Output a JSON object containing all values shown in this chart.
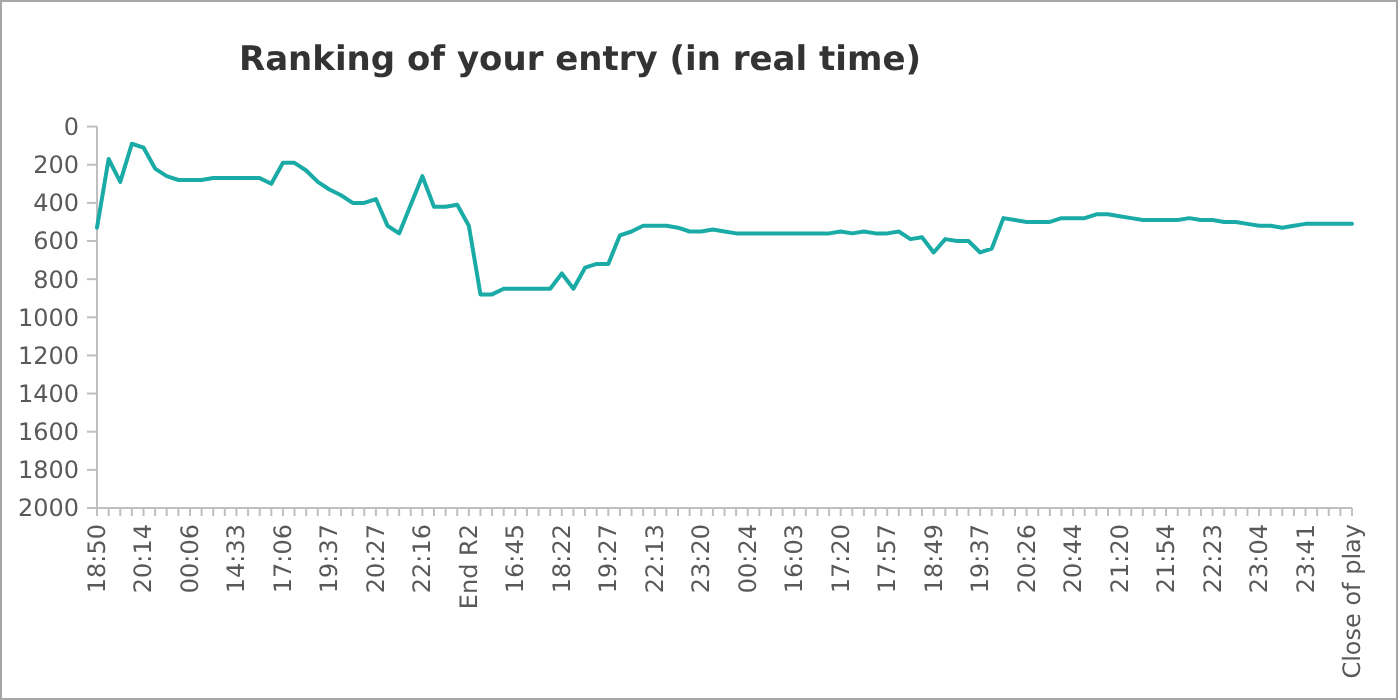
{
  "chart_data": {
    "type": "line",
    "title": "Ranking of your entry (in real time)",
    "categories": [
      "18:50",
      null,
      null,
      null,
      "20:14",
      null,
      null,
      null,
      "00:06",
      null,
      null,
      null,
      "14:33",
      null,
      null,
      null,
      "17:06",
      null,
      null,
      null,
      "19:37",
      null,
      null,
      null,
      "20:27",
      null,
      null,
      null,
      "22:16",
      null,
      null,
      null,
      "End R2",
      null,
      null,
      null,
      "16:45",
      null,
      null,
      null,
      "18:22",
      null,
      null,
      null,
      "19:27",
      null,
      null,
      null,
      "22:13",
      null,
      null,
      null,
      "23:20",
      null,
      null,
      null,
      "00:24",
      null,
      null,
      null,
      "16:03",
      null,
      null,
      null,
      "17:20",
      null,
      null,
      null,
      "17:57",
      null,
      null,
      null,
      "18:49",
      null,
      null,
      null,
      "19:37",
      null,
      null,
      null,
      "20:26",
      null,
      null,
      null,
      "20:44",
      null,
      null,
      null,
      "21:20",
      null,
      null,
      null,
      "21:54",
      null,
      null,
      null,
      "22:23",
      null,
      null,
      null,
      "23:04",
      null,
      null,
      null,
      "23:41",
      null,
      null,
      null,
      "Close of play"
    ],
    "series": [
      {
        "color": "#1aaba6",
        "values": [
          530,
          170,
          290,
          90,
          110,
          220,
          260,
          280,
          280,
          280,
          270,
          270,
          270,
          270,
          270,
          300,
          190,
          190,
          230,
          290,
          330,
          360,
          400,
          400,
          380,
          520,
          560,
          410,
          260,
          420,
          420,
          410,
          520,
          880,
          880,
          850,
          850,
          850,
          850,
          850,
          770,
          850,
          740,
          720,
          720,
          570,
          550,
          520,
          520,
          520,
          530,
          550,
          550,
          540,
          550,
          560,
          560,
          560,
          560,
          560,
          560,
          560,
          560,
          560,
          550,
          560,
          550,
          560,
          560,
          550,
          590,
          580,
          660,
          590,
          600,
          600,
          660,
          640,
          480,
          490,
          500,
          500,
          500,
          480,
          480,
          480,
          460,
          460,
          470,
          480,
          490,
          490,
          490,
          490,
          480,
          490,
          490,
          500,
          500,
          510,
          520,
          520,
          530,
          520,
          510,
          510,
          510,
          510,
          510
        ]
      }
    ],
    "ylim": [
      2000,
      0
    ],
    "yticks": [
      0,
      200,
      400,
      600,
      800,
      1000,
      1200,
      1400,
      1600,
      1800,
      2000
    ],
    "grid": false,
    "marker": "none",
    "line_style": "solid"
  }
}
